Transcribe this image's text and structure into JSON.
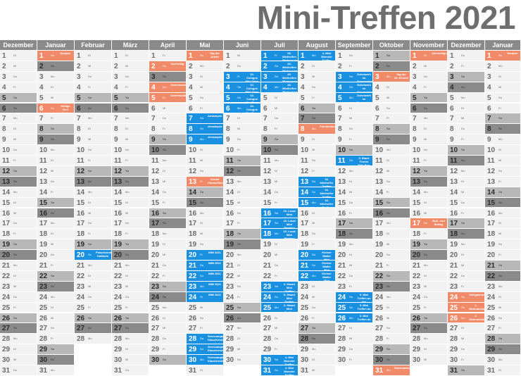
{
  "title": "Mini-Treffen 2021",
  "colors": {
    "workday": "#f2f2f2",
    "saturday": "#b8b8b8",
    "sunday": "#8a8a8a",
    "holiday": "#f08a68",
    "event": "#1a90e0",
    "header": "#8a8a8a"
  },
  "weekday_abbrev": [
    "Mo",
    "Di",
    "Mi",
    "Do",
    "Fr",
    "Sa",
    "So"
  ],
  "months": [
    {
      "name": "Dezember",
      "days": 31,
      "start": 1,
      "type": "partial"
    },
    {
      "name": "Januar",
      "days": 31,
      "start": 5,
      "holidays": {
        "1": "Neujahr",
        "6": "Heilige Drei Könige"
      }
    },
    {
      "name": "Februar",
      "days": 28,
      "start": 1,
      "events": {
        "20": "Polarstunde Kaltbuhl"
      }
    },
    {
      "name": "März",
      "days": 31,
      "start": 1
    },
    {
      "name": "April",
      "days": 30,
      "start": 4,
      "holidays": {
        "2": "Karfreitag",
        "4": "Ostersonntag",
        "5": "Ostermontag"
      }
    },
    {
      "name": "Mai",
      "days": 31,
      "start": 6,
      "holidays": {
        "1": "Tag der Arbeit",
        "13": "Christi Himmelfahrt"
      },
      "events": {
        "7": "Ansampen",
        "8": "Ansampen",
        "9": "Ansampen",
        "20": "IMM 2021",
        "21": "IMM 2021",
        "22": "IMM 2021",
        "23": "IMM 2021",
        "24": "IMM 2021",
        "28": "Seencamping Klauchenstein",
        "29": "Seencamping Klauchenstein",
        "30": "Seencamping Klauchenstein"
      }
    },
    {
      "name": "Juni",
      "days": 30,
      "start": 2,
      "events": {
        "3": "10. Cologne Mini Days",
        "4": "10. Cologne Mini Days",
        "5": "10. Cologne Mini Days",
        "6": "10. Cologne Mini Days"
      }
    },
    {
      "name": "Juli",
      "days": 31,
      "start": 4,
      "events": {
        "1": "26. Minihelfen Minicorona Lili",
        "2": "26. Minihelfen Minicorona Lili",
        "3": "26. Minihelfen Minicorona Lili",
        "4": "26. Minihelfen Minicorona Lili",
        "16": "16. Local Mini Meeting",
        "17": "16. Local Mini Meeting",
        "18": "16. Local Mini Meeting",
        "23": "6. Haard Mini Treffen",
        "24": "6. Haard Mini Treffen",
        "25": "6. Haard Mini Treffen",
        "30": "4. Mini Monster Treffen",
        "31": "4. Mini Monster Treffen"
      }
    },
    {
      "name": "August",
      "days": 31,
      "start": 0,
      "holidays": {
        "8": "Friedensfest"
      },
      "events": {
        "1": "4. Mini Monster Treffen",
        "13": "16. Minihelfer Treffen",
        "14": "16. Minihelfer Treffen",
        "15": "16. Minihelfer Treffen",
        "20": "Kleiner Walter Mini Treffen",
        "21": "Kleiner Walter Mini Treffen",
        "22": "Kleiner Walter Mini Treffen"
      }
    },
    {
      "name": "September",
      "days": 30,
      "start": 3,
      "events": {
        "3": "Scheiwerk im Sonnenland Mini Treffen",
        "4": "Scheiwerk im Sonnenland Mini Treffen",
        "5": "Scheiwerk im Sonnenland Mini Treffen",
        "11": "5. Black Forest Mini Run",
        "24": "5. Mini Treffen an der Lambrik",
        "25": "5. Mini Treffen an der Lambrik",
        "26": "5. Mini Treffen an der Lambrik"
      }
    },
    {
      "name": "Oktober",
      "days": 31,
      "start": 5,
      "holidays": {
        "3": "Tag der Dt. Einheit",
        "31": "Reformationstag"
      }
    },
    {
      "name": "November",
      "days": 30,
      "start": 1,
      "holidays": {
        "1": "Allerheiligen",
        "17": "Buß- und Bettag"
      }
    },
    {
      "name": "Dezember",
      "days": 31,
      "start": 3,
      "holidays": {
        "24": "Heiligabend",
        "25": "1. Weihnachtstag",
        "26": "2. Weihnachtstag"
      }
    },
    {
      "name": "Januar",
      "days": 31,
      "start": 6,
      "holidays": {
        "1": "Neujahr"
      }
    }
  ]
}
